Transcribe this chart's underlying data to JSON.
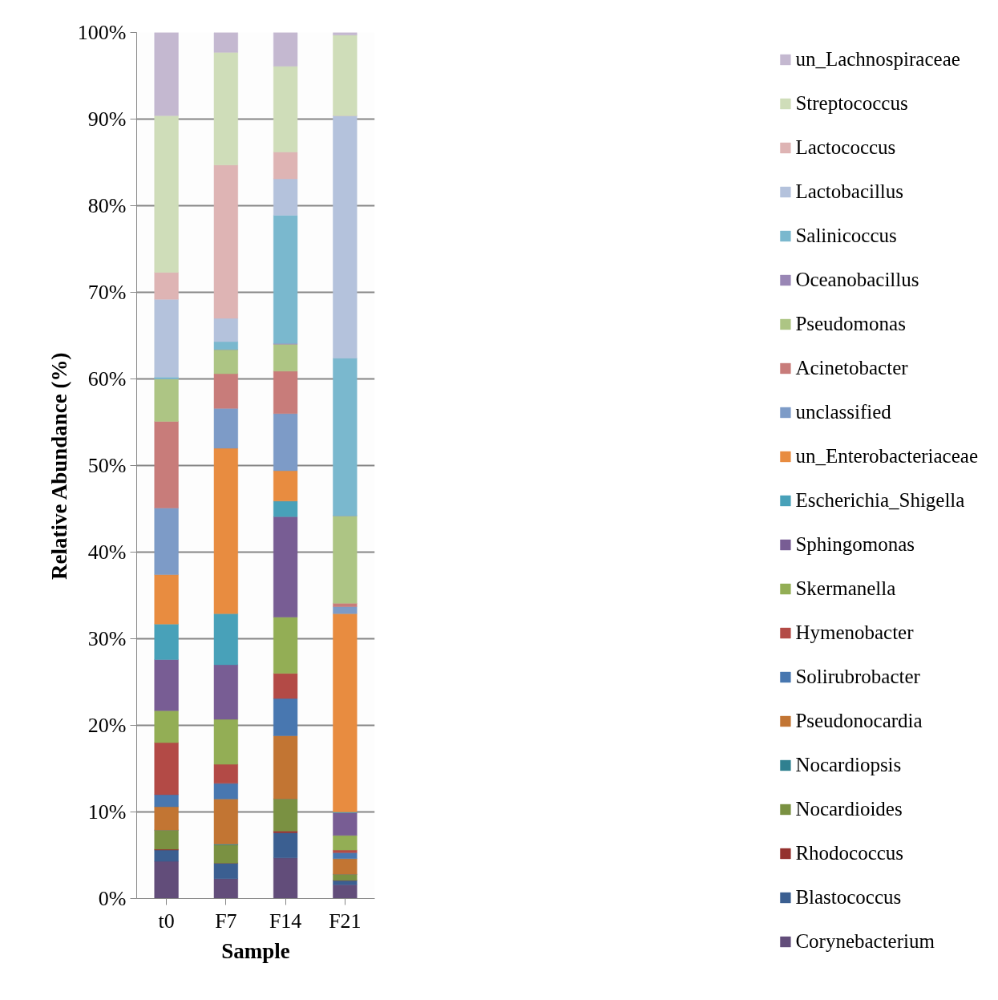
{
  "chart_data": {
    "type": "bar",
    "stacked": true,
    "xlabel": "Sample",
    "ylabel": "Relative Abundance (%)",
    "categories": [
      "t0",
      "F7",
      "F14",
      "F21"
    ],
    "ylim": [
      0,
      100
    ],
    "yticks": [
      {
        "value": 0,
        "label": "0%"
      },
      {
        "value": 10,
        "label": "10%"
      },
      {
        "value": 20,
        "label": "20%"
      },
      {
        "value": 30,
        "label": "30%"
      },
      {
        "value": 40,
        "label": "40%"
      },
      {
        "value": 50,
        "label": "50%"
      },
      {
        "value": 60,
        "label": "60%"
      },
      {
        "value": 70,
        "label": "70%"
      },
      {
        "value": 80,
        "label": "80%"
      },
      {
        "value": 90,
        "label": "90%"
      },
      {
        "value": 100,
        "label": "100%"
      }
    ],
    "grid": "y",
    "legend": "right",
    "series": [
      {
        "name": "Corynebacterium",
        "color": "#624d7a",
        "values": [
          4.3,
          2.3,
          4.7,
          1.6
        ]
      },
      {
        "name": "Blastococcus",
        "color": "#3b5f91",
        "values": [
          1.3,
          1.8,
          2.9,
          0.5
        ]
      },
      {
        "name": "Rhodococcus",
        "color": "#94312e",
        "values": [
          0.1,
          0,
          0.2,
          0
        ]
      },
      {
        "name": "Nocardioides",
        "color": "#7a9142",
        "values": [
          2.2,
          2.1,
          3.7,
          0.7
        ]
      },
      {
        "name": "Nocardiopsis",
        "color": "#2f8090",
        "values": [
          0,
          0.1,
          0,
          0
        ]
      },
      {
        "name": "Pseudonocardia",
        "color": "#c27533",
        "values": [
          2.7,
          5.2,
          7.3,
          1.8
        ]
      },
      {
        "name": "Solirubrobacter",
        "color": "#4877b0",
        "values": [
          1.4,
          1.8,
          4.3,
          0.7
        ]
      },
      {
        "name": "Hymenobacter",
        "color": "#b34a46",
        "values": [
          6.0,
          2.2,
          2.9,
          0.3
        ]
      },
      {
        "name": "Skermanella",
        "color": "#93ae55",
        "values": [
          3.7,
          5.2,
          6.5,
          1.7
        ]
      },
      {
        "name": "Sphingomonas",
        "color": "#785d94",
        "values": [
          5.9,
          6.3,
          11.6,
          2.6
        ]
      },
      {
        "name": "Escherichia_Shigella",
        "color": "#48a1b9",
        "values": [
          4.1,
          5.9,
          1.8,
          0.1
        ]
      },
      {
        "name": "un_Enterobacteriaceae",
        "color": "#e88c40",
        "values": [
          5.7,
          19.1,
          3.5,
          22.9
        ]
      },
      {
        "name": "unclassified",
        "color": "#7d9bc7",
        "values": [
          7.7,
          4.6,
          6.6,
          0.8
        ]
      },
      {
        "name": "Acinetobacter",
        "color": "#c87c7a",
        "values": [
          10.0,
          4.0,
          4.9,
          0.4
        ]
      },
      {
        "name": "Pseudomonas",
        "color": "#adc584",
        "values": [
          4.9,
          2.8,
          3.1,
          10.1
        ]
      },
      {
        "name": "Oceanobacillus",
        "color": "#9986b5",
        "values": [
          0,
          0,
          0.1,
          0
        ]
      },
      {
        "name": "Salinicoccus",
        "color": "#7ab8ce",
        "values": [
          0.2,
          0.9,
          14.8,
          18.2
        ]
      },
      {
        "name": "Lactobacillus",
        "color": "#b4c2dc",
        "values": [
          9.0,
          2.7,
          4.2,
          28.0
        ]
      },
      {
        "name": "Lactococcus",
        "color": "#deb4b4",
        "values": [
          3.1,
          17.7,
          3.1,
          0
        ]
      },
      {
        "name": "Streptococcus",
        "color": "#cfddb9",
        "values": [
          18.1,
          13.0,
          9.9,
          9.3
        ]
      },
      {
        "name": "un_Lachnospiraceae",
        "color": "#c4b8d0",
        "values": [
          9.6,
          2.4,
          3.9,
          0.3
        ]
      }
    ]
  }
}
